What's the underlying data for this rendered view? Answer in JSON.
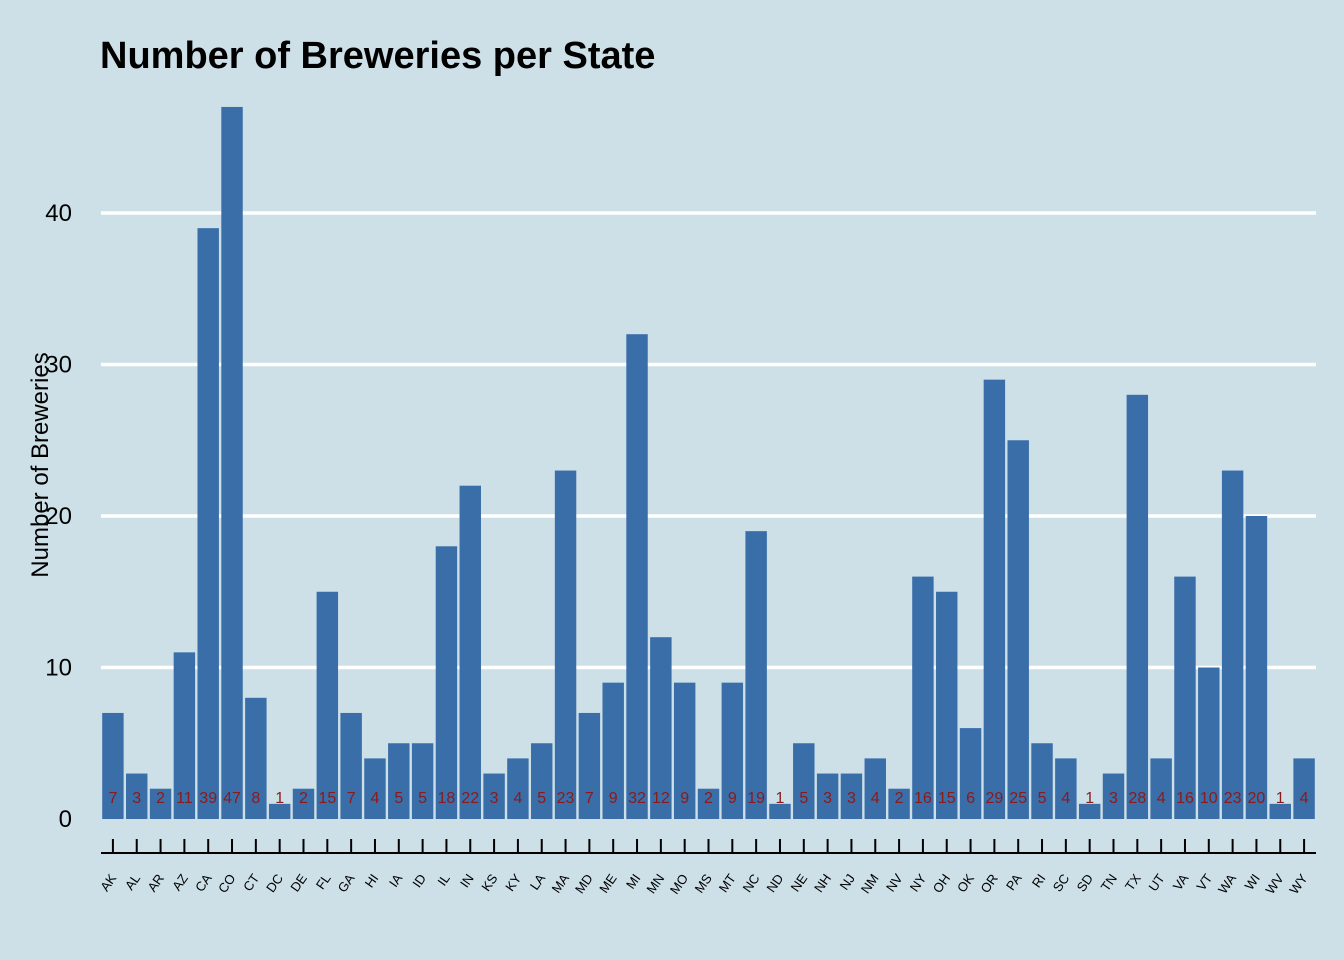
{
  "chart_data": {
    "type": "bar",
    "title": "Number of Breweries per State",
    "xlabel": "",
    "ylabel": "Number of Breweries",
    "ylim": [
      0,
      50
    ],
    "yticks": [
      0,
      10,
      20,
      30,
      40
    ],
    "grid": "horizontal",
    "bar_color": "#3a6ea8",
    "label_color": "#8b1a1a",
    "background": "#cde0e8",
    "categories": [
      "AK",
      "AL",
      "AR",
      "AZ",
      "CA",
      "CO",
      "CT",
      "DC",
      "DE",
      "FL",
      "GA",
      "HI",
      "IA",
      "ID",
      "IL",
      "IN",
      "KS",
      "KY",
      "LA",
      "MA",
      "MD",
      "ME",
      "MI",
      "MN",
      "MO",
      "MS",
      "MT",
      "NC",
      "ND",
      "NE",
      "NH",
      "NJ",
      "NM",
      "NV",
      "NY",
      "OH",
      "OK",
      "OR",
      "PA",
      "RI",
      "SC",
      "SD",
      "TN",
      "TX",
      "UT",
      "VA",
      "VT",
      "WA",
      "WI",
      "WV",
      "WY"
    ],
    "values": [
      7,
      3,
      2,
      11,
      39,
      47,
      8,
      1,
      2,
      15,
      7,
      4,
      5,
      5,
      18,
      22,
      3,
      4,
      5,
      23,
      7,
      9,
      32,
      12,
      9,
      2,
      9,
      19,
      1,
      5,
      3,
      3,
      4,
      2,
      16,
      15,
      6,
      29,
      25,
      5,
      4,
      1,
      3,
      28,
      4,
      16,
      10,
      23,
      20,
      1,
      4
    ]
  }
}
